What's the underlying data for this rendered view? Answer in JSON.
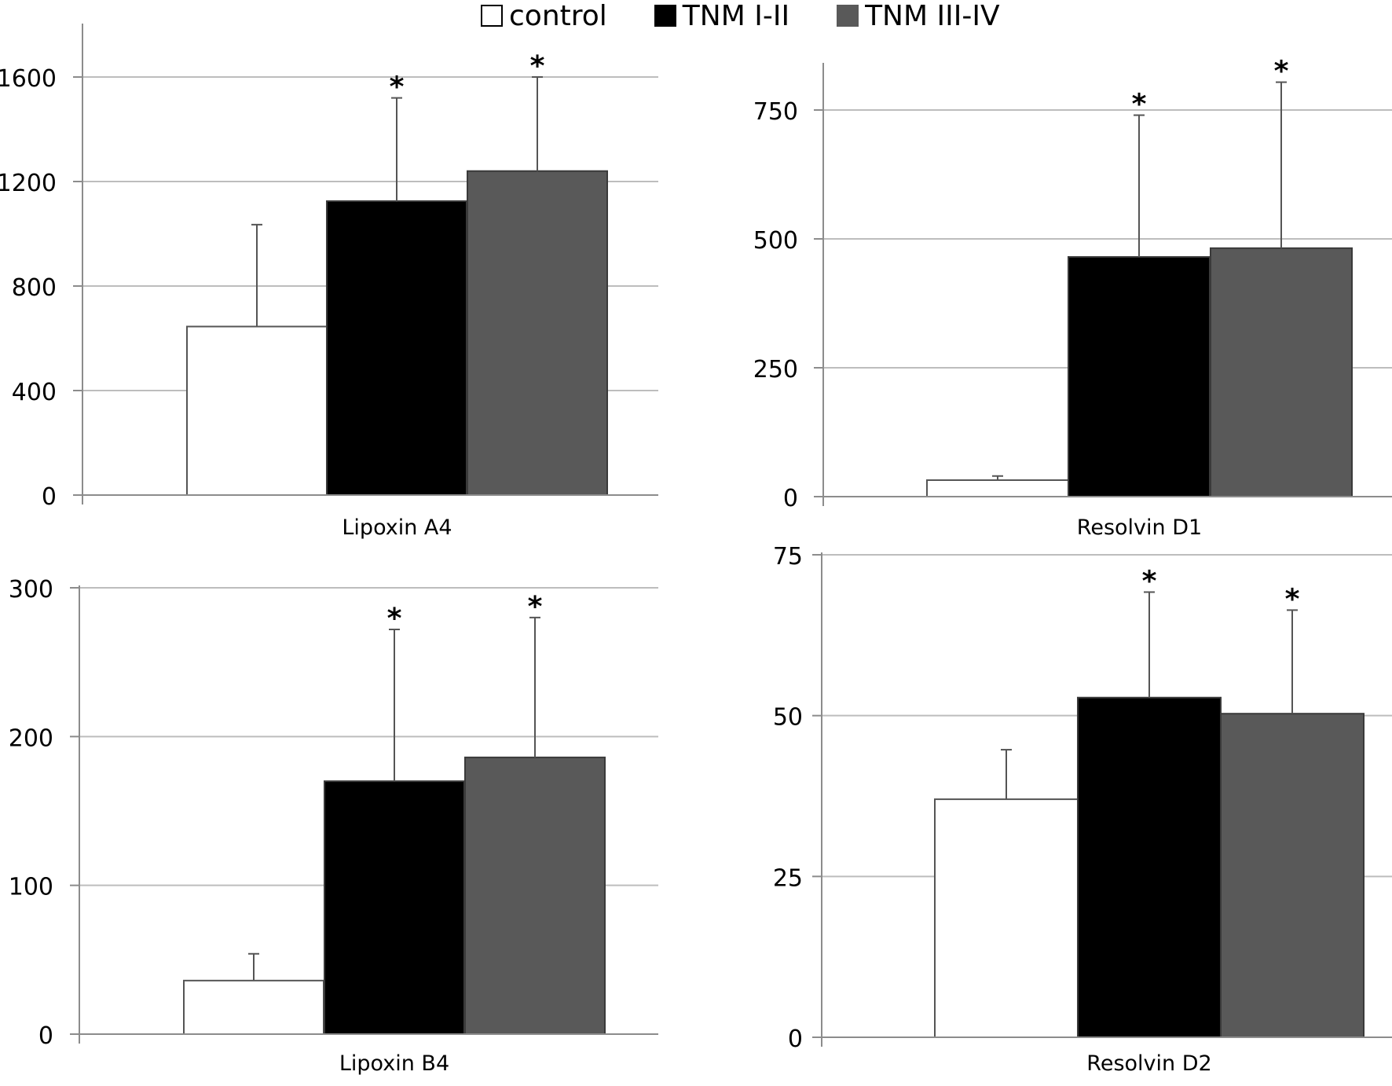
{
  "legend": {
    "items": [
      {
        "label": "control",
        "color": "#ffffff"
      },
      {
        "label": "TNM I-II",
        "color": "#000000"
      },
      {
        "label": "TNM III-IV",
        "color": "#595959"
      }
    ]
  },
  "chart_data": [
    {
      "type": "bar",
      "title": "Lipoxin A4",
      "categories": [
        "control",
        "TNM I-II",
        "TNM III-IV"
      ],
      "values": [
        645,
        1125,
        1240
      ],
      "errors": [
        390,
        395,
        360
      ],
      "significance": [
        "",
        "*",
        "*"
      ],
      "ylim": [
        0,
        1800
      ],
      "yticks": [
        0,
        400,
        800,
        1200,
        1600
      ],
      "grid": true
    },
    {
      "type": "bar",
      "title": "Resolvin D1",
      "categories": [
        "control",
        "TNM I-II",
        "TNM III-IV"
      ],
      "values": [
        32,
        465,
        482
      ],
      "errors": [
        8,
        275,
        322
      ],
      "significance": [
        "",
        "*",
        "*"
      ],
      "ylim": [
        0,
        840
      ],
      "yticks": [
        0,
        250,
        500,
        750
      ],
      "grid": true
    },
    {
      "type": "bar",
      "title": "Lipoxin B4",
      "categories": [
        "control",
        "TNM I-II",
        "TNM III-IV"
      ],
      "values": [
        36,
        170,
        186
      ],
      "errors": [
        18,
        102,
        94
      ],
      "significance": [
        "",
        "*",
        "*"
      ],
      "ylim": [
        0,
        300
      ],
      "yticks": [
        0,
        100,
        200,
        300
      ],
      "grid": true
    },
    {
      "type": "bar",
      "title": "Resolvin D2",
      "categories": [
        "control",
        "TNM I-II",
        "TNM III-IV"
      ],
      "values": [
        37,
        52.8,
        50.3
      ],
      "errors": [
        7.7,
        16.4,
        16.1
      ],
      "significance": [
        "",
        "*",
        "*"
      ],
      "ylim": [
        0,
        75
      ],
      "yticks": [
        0,
        25,
        50,
        75
      ],
      "grid": true
    }
  ]
}
